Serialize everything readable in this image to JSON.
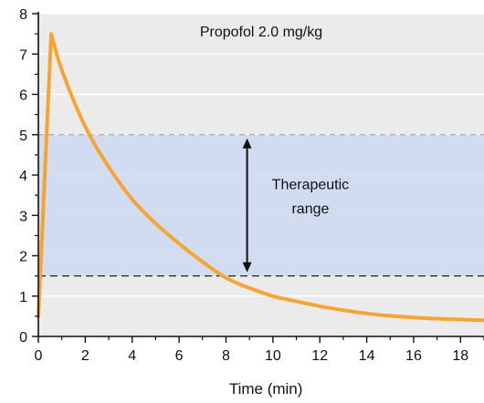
{
  "chart_data": {
    "type": "line",
    "title": "Propofol 2.0 mg/kg",
    "xlabel": "Time (min)",
    "ylabel": "",
    "xlim": [
      0,
      19
    ],
    "ylim": [
      0,
      8
    ],
    "x_ticks": [
      0,
      2,
      4,
      6,
      8,
      10,
      12,
      14,
      16,
      18
    ],
    "x_tick_labels": [
      "0",
      "2",
      "4",
      "6",
      "8",
      "10",
      "12",
      "14",
      "16",
      "18"
    ],
    "y_ticks": [
      0,
      1,
      2,
      3,
      4,
      5,
      6,
      7,
      8
    ],
    "y_tick_labels": [
      "0",
      "1",
      "2",
      "3",
      "4",
      "5",
      "6",
      "7",
      "8"
    ],
    "grid": true,
    "series": [
      {
        "color": "#f4a534",
        "x": [
          0,
          0.55,
          1,
          2,
          3,
          4,
          5,
          6,
          7,
          8,
          9,
          10,
          11,
          12,
          13,
          14,
          15,
          16,
          17,
          18,
          19
        ],
        "y": [
          0.5,
          7.5,
          6.6,
          5.2,
          4.2,
          3.4,
          2.8,
          2.3,
          1.85,
          1.45,
          1.2,
          1.0,
          0.87,
          0.75,
          0.65,
          0.57,
          0.51,
          0.47,
          0.44,
          0.42,
          0.4
        ]
      }
    ],
    "therapeutic_range": {
      "label_lines": [
        "Therapeutic",
        "range"
      ],
      "low": 1.5,
      "high": 5.0,
      "fill_color": "#cfdaf2"
    },
    "colors": {
      "plot_background": "#ebebeb",
      "gridline": "#ffffff",
      "curve": "#f4a534"
    }
  }
}
